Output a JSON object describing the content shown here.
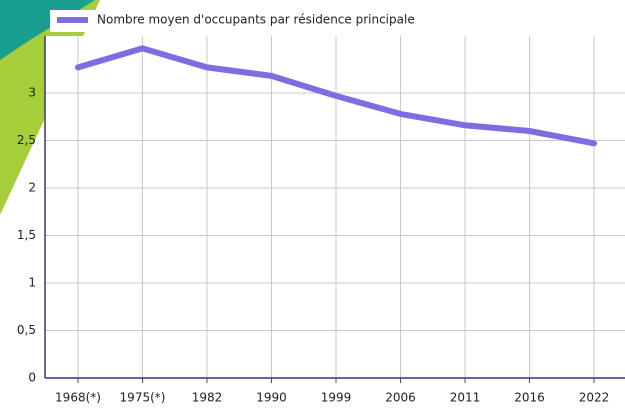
{
  "chart_data": {
    "type": "line",
    "categories": [
      "1968(*)",
      "1975(*)",
      "1982",
      "1990",
      "1999",
      "2006",
      "2011",
      "2016",
      "2022"
    ],
    "series": [
      {
        "name": "Nombre moyen d'occupants par résidence principale",
        "color": "#7b6ee3",
        "values": [
          3.27,
          3.47,
          3.27,
          3.18,
          2.97,
          2.78,
          2.66,
          2.6,
          2.47
        ]
      }
    ],
    "ylim": [
      0,
      3.6
    ],
    "yticks": [
      0,
      {
        "value": 0.5,
        "label": "0,5"
      },
      1,
      {
        "value": 1.5,
        "label": "1,5"
      },
      2,
      {
        "value": 2.5,
        "label": "2,5"
      },
      3
    ],
    "grid": true,
    "legend": "top"
  }
}
